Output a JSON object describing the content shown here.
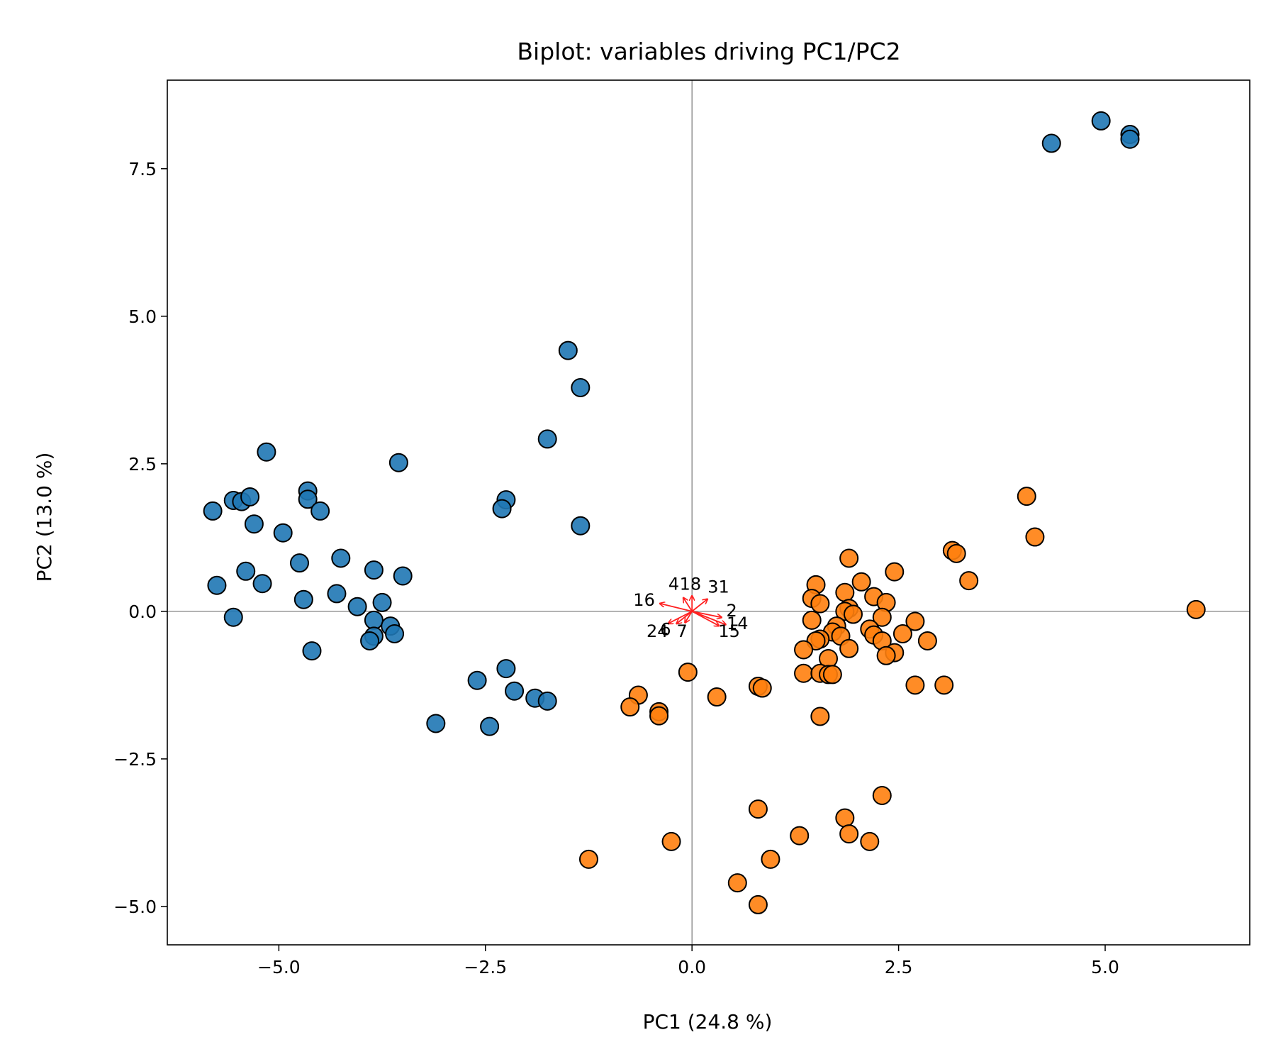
{
  "chart_data": {
    "type": "scatter",
    "title": "Biplot: variables driving PC1/PC2",
    "xlabel": "PC1 (24.8 %)",
    "ylabel": "PC2 (13.0 %)",
    "xlim": [
      -6.35,
      6.75
    ],
    "ylim": [
      -5.65,
      9.0
    ],
    "xticks": [
      -5.0,
      -2.5,
      0.0,
      2.5,
      5.0
    ],
    "xtick_labels": [
      "−5.0",
      "−2.5",
      "0.0",
      "2.5",
      "5.0"
    ],
    "yticks": [
      -5.0,
      -2.5,
      0.0,
      2.5,
      5.0,
      7.5
    ],
    "ytick_labels": [
      "−5.0",
      "−2.5",
      "0.0",
      "2.5",
      "5.0",
      "7.5"
    ],
    "grid": false,
    "reference_lines": {
      "x": 0,
      "y": 0,
      "color": "#808080"
    },
    "colors": {
      "group_a": "#1f77b4",
      "group_b": "#ff7f0e",
      "edge": "#000000",
      "loading": "#ff2020"
    },
    "series": [
      {
        "color": "#1f77b4",
        "points": [
          [
            4.35,
            7.93
          ],
          [
            4.95,
            8.31
          ],
          [
            5.3,
            8.08
          ],
          [
            5.3,
            8.0
          ],
          [
            -1.5,
            4.42
          ],
          [
            -1.35,
            3.79
          ],
          [
            -1.75,
            2.92
          ],
          [
            -5.15,
            2.7
          ],
          [
            -3.55,
            2.52
          ],
          [
            -2.25,
            1.89
          ],
          [
            -2.3,
            1.74
          ],
          [
            -1.35,
            1.45
          ],
          [
            -5.8,
            1.7
          ],
          [
            -5.55,
            1.88
          ],
          [
            -5.45,
            1.86
          ],
          [
            -5.35,
            1.94
          ],
          [
            -5.3,
            1.48
          ],
          [
            -4.95,
            1.33
          ],
          [
            -4.65,
            2.04
          ],
          [
            -4.65,
            1.9
          ],
          [
            -4.5,
            1.7
          ],
          [
            -4.75,
            0.82
          ],
          [
            -4.25,
            0.9
          ],
          [
            -3.85,
            0.7
          ],
          [
            -3.5,
            0.6
          ],
          [
            -5.75,
            0.44
          ],
          [
            -5.4,
            0.68
          ],
          [
            -5.2,
            0.47
          ],
          [
            -4.3,
            0.3
          ],
          [
            -4.7,
            0.2
          ],
          [
            -4.05,
            0.08
          ],
          [
            -3.75,
            0.15
          ],
          [
            -5.55,
            -0.1
          ],
          [
            -3.85,
            -0.15
          ],
          [
            -3.65,
            -0.25
          ],
          [
            -3.85,
            -0.42
          ],
          [
            -3.9,
            -0.5
          ],
          [
            -3.6,
            -0.38
          ],
          [
            -4.6,
            -0.67
          ],
          [
            -2.25,
            -0.97
          ],
          [
            -2.6,
            -1.17
          ],
          [
            -2.15,
            -1.35
          ],
          [
            -1.9,
            -1.47
          ],
          [
            -1.75,
            -1.52
          ],
          [
            -3.1,
            -1.9
          ],
          [
            -2.45,
            -1.95
          ]
        ]
      },
      {
        "color": "#ff7f0e",
        "points": [
          [
            6.1,
            0.03
          ],
          [
            4.05,
            1.95
          ],
          [
            4.15,
            1.26
          ],
          [
            3.15,
            1.03
          ],
          [
            3.2,
            0.98
          ],
          [
            3.35,
            0.52
          ],
          [
            1.9,
            0.9
          ],
          [
            2.45,
            0.67
          ],
          [
            2.05,
            0.5
          ],
          [
            1.5,
            0.45
          ],
          [
            1.85,
            0.32
          ],
          [
            1.45,
            0.22
          ],
          [
            2.2,
            0.25
          ],
          [
            2.35,
            0.15
          ],
          [
            1.55,
            0.13
          ],
          [
            1.9,
            0.05
          ],
          [
            1.85,
            0.0
          ],
          [
            1.95,
            -0.05
          ],
          [
            2.3,
            -0.1
          ],
          [
            1.45,
            -0.15
          ],
          [
            2.7,
            -0.17
          ],
          [
            1.75,
            -0.25
          ],
          [
            2.15,
            -0.3
          ],
          [
            1.7,
            -0.35
          ],
          [
            2.55,
            -0.38
          ],
          [
            2.2,
            -0.4
          ],
          [
            1.8,
            -0.42
          ],
          [
            1.55,
            -0.47
          ],
          [
            1.5,
            -0.5
          ],
          [
            2.3,
            -0.5
          ],
          [
            2.85,
            -0.5
          ],
          [
            1.9,
            -0.63
          ],
          [
            1.35,
            -0.65
          ],
          [
            2.45,
            -0.7
          ],
          [
            2.35,
            -0.75
          ],
          [
            1.65,
            -0.8
          ],
          [
            1.35,
            -1.05
          ],
          [
            1.55,
            -1.05
          ],
          [
            1.65,
            -1.07
          ],
          [
            1.7,
            -1.07
          ],
          [
            -0.05,
            -1.03
          ],
          [
            0.8,
            -1.27
          ],
          [
            0.85,
            -1.3
          ],
          [
            2.7,
            -1.25
          ],
          [
            3.05,
            -1.25
          ],
          [
            -0.65,
            -1.42
          ],
          [
            0.3,
            -1.45
          ],
          [
            -0.75,
            -1.62
          ],
          [
            -0.4,
            -1.7
          ],
          [
            -0.4,
            -1.77
          ],
          [
            1.55,
            -1.78
          ],
          [
            2.3,
            -3.12
          ],
          [
            0.8,
            -3.35
          ],
          [
            1.85,
            -3.5
          ],
          [
            1.9,
            -3.77
          ],
          [
            1.3,
            -3.8
          ],
          [
            2.15,
            -3.9
          ],
          [
            -0.25,
            -3.9
          ],
          [
            0.95,
            -4.2
          ],
          [
            -1.25,
            -4.2
          ],
          [
            0.55,
            -4.6
          ],
          [
            0.8,
            -4.97
          ]
        ]
      }
    ],
    "loadings": [
      {
        "label": "4",
        "x": -0.1,
        "y": 0.22,
        "lx": -0.22,
        "ly": 0.45
      },
      {
        "label": "18",
        "x": 0.0,
        "y": 0.25,
        "lx": -0.02,
        "ly": 0.45
      },
      {
        "label": "31",
        "x": 0.18,
        "y": 0.2,
        "lx": 0.32,
        "ly": 0.4
      },
      {
        "label": "16",
        "x": -0.38,
        "y": 0.13,
        "lx": -0.58,
        "ly": 0.18
      },
      {
        "label": "2",
        "x": 0.35,
        "y": -0.1,
        "lx": 0.48,
        "ly": 0.0
      },
      {
        "label": "14",
        "x": 0.4,
        "y": -0.22,
        "lx": 0.55,
        "ly": -0.22
      },
      {
        "label": "15",
        "x": 0.32,
        "y": -0.24,
        "lx": 0.45,
        "ly": -0.35
      },
      {
        "label": "24",
        "x": -0.28,
        "y": -0.2,
        "lx": -0.42,
        "ly": -0.35
      },
      {
        "label": "6",
        "x": -0.18,
        "y": -0.2,
        "lx": -0.32,
        "ly": -0.32
      },
      {
        "label": "7",
        "x": -0.08,
        "y": -0.18,
        "lx": -0.12,
        "ly": -0.35
      }
    ]
  }
}
